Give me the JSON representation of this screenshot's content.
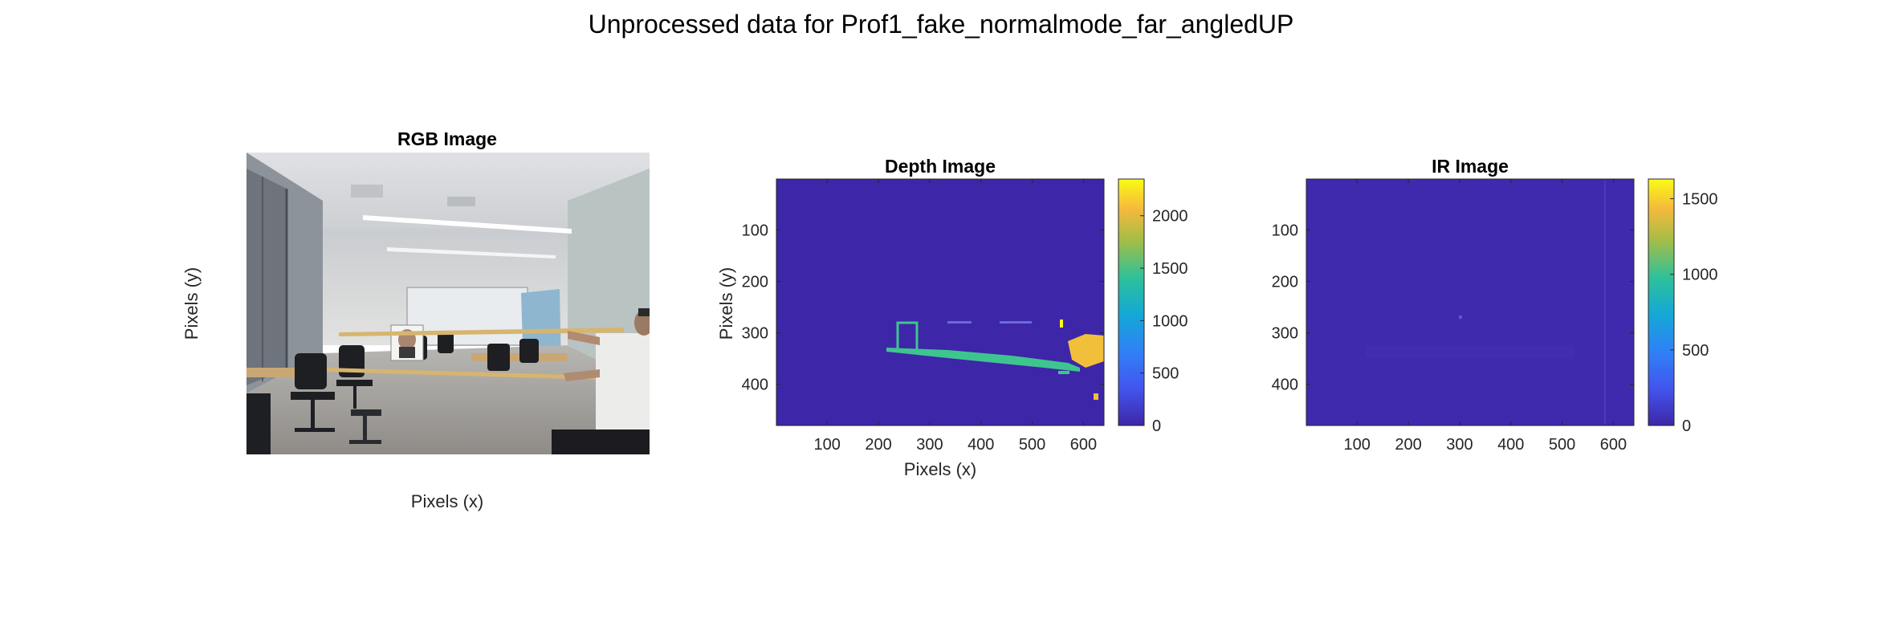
{
  "figure": {
    "title": "Unprocessed data for Prof1_fake_normalmode_far_angledUP"
  },
  "chart_data": [
    {
      "type": "image",
      "title": "RGB Image",
      "xlabel": "Pixels (x)",
      "ylabel": "Pixels (y)",
      "axis_visible": false,
      "scene": "indoor office room with ceiling lights, office chairs, whiteboard, a person on the right holding wooden poles, printed face photo on a stand"
    },
    {
      "type": "heatmap",
      "title": "Depth Image",
      "xlabel": "Pixels (x)",
      "ylabel": "Pixels (y)",
      "xlim": [
        1,
        640
      ],
      "ylim": [
        1,
        480
      ],
      "xticks": [
        100,
        200,
        300,
        400,
        500,
        600
      ],
      "yticks": [
        100,
        200,
        300,
        400
      ],
      "colorbar": {
        "min": 0,
        "max": 2350,
        "ticks": [
          0,
          500,
          1000,
          1500,
          2000
        ]
      },
      "background_value": 0,
      "features": [
        {
          "name": "photo-frame",
          "value": 1350
        },
        {
          "name": "pole-line",
          "value": 1350
        },
        {
          "name": "far-cluster",
          "value": 2150
        },
        {
          "name": "speckle",
          "value": 2300
        }
      ]
    },
    {
      "type": "heatmap",
      "title": "IR Image",
      "xlabel": "",
      "ylabel": "",
      "xlim": [
        1,
        640
      ],
      "ylim": [
        1,
        480
      ],
      "xticks": [
        100,
        200,
        300,
        400,
        500,
        600
      ],
      "yticks": [
        100,
        200,
        300,
        400
      ],
      "colorbar": {
        "min": 0,
        "max": 1630,
        "ticks": [
          0,
          500,
          1000,
          1500
        ]
      },
      "background_value": 20,
      "features": [
        {
          "name": "faint-dot",
          "value": 250
        },
        {
          "name": "faint-column",
          "value": 120
        }
      ]
    }
  ]
}
